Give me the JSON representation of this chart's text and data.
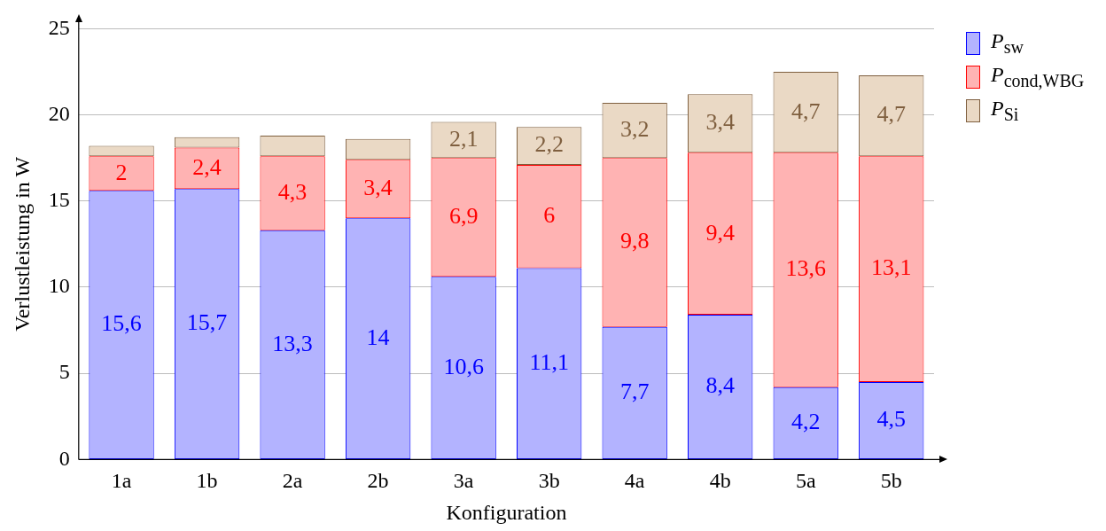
{
  "chart_data": {
    "type": "bar",
    "stacked": true,
    "xlabel": "Konfiguration",
    "ylabel": "Verlustleistung in W",
    "categories": [
      "1a",
      "1b",
      "2a",
      "2b",
      "3a",
      "3b",
      "4a",
      "4b",
      "5a",
      "5b"
    ],
    "ylim": [
      0,
      25
    ],
    "yticks": [
      0,
      5,
      10,
      15,
      20,
      25
    ],
    "grid": "y",
    "legend": "top right",
    "series": [
      {
        "name": "P$_{sw}$",
        "color": "#b3b3ff",
        "values": [
          15.6,
          15.7,
          13.3,
          14,
          10.6,
          11.1,
          7.7,
          8.4,
          4.2,
          4.5
        ],
        "value_labels": [
          "15,6",
          "15,7",
          "13,3",
          "14",
          "10,6",
          "11,1",
          "7,7",
          "8,4",
          "4,2",
          "4,5"
        ]
      },
      {
        "name": "P$_{cond,WBG}$",
        "color": "#ffb3b3",
        "values": [
          2,
          2.4,
          4.3,
          3.4,
          6.9,
          6,
          9.8,
          9.4,
          13.6,
          13.1
        ],
        "value_labels": [
          "2",
          "2,4",
          "4,3",
          "3,4",
          "6,9",
          "6",
          "9,8",
          "9,4",
          "13,6",
          "13,1"
        ]
      },
      {
        "name": "P$_{Si}$",
        "color": "#ead9c5",
        "values": [
          0.6,
          0.6,
          1.2,
          1.2,
          2.1,
          2.2,
          3.2,
          3.4,
          4.7,
          4.7
        ],
        "value_labels": [
          null,
          null,
          null,
          null,
          "2,1",
          "2,2",
          "3,2",
          "3,4",
          "4,7",
          "4,7"
        ]
      }
    ]
  }
}
